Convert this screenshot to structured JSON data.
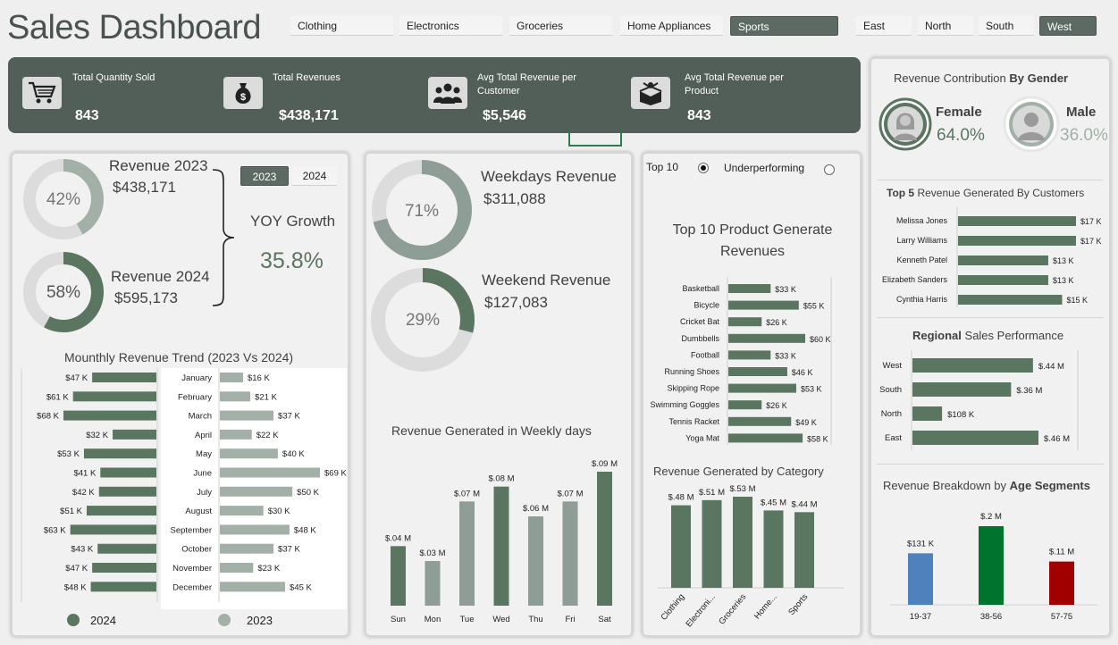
{
  "title": "Sales Dashboard",
  "category_slicer": [
    {
      "label": "Clothing",
      "selected": false
    },
    {
      "label": "Electronics",
      "selected": false
    },
    {
      "label": "Groceries",
      "selected": false
    },
    {
      "label": "Home Appliances",
      "selected": false
    },
    {
      "label": "Sports",
      "selected": true
    }
  ],
  "region_slicer": [
    {
      "label": "East",
      "selected": false
    },
    {
      "label": "North",
      "selected": false
    },
    {
      "label": "South",
      "selected": false
    },
    {
      "label": "West",
      "selected": true
    }
  ],
  "kpis": [
    {
      "label": "Total Quantity Sold",
      "value": "843",
      "icon": "cart-icon"
    },
    {
      "label": "Total Revenues",
      "value": "$438,171",
      "icon": "money-bag-icon"
    },
    {
      "label": "Avg Total Revenue per Customer",
      "value": "$5,546",
      "icon": "people-icon"
    },
    {
      "label": "Avg Total Revenue per Product",
      "value": "843",
      "icon": "product-box-icon"
    }
  ],
  "yoy": {
    "rev2023_label": "Revenue 2023",
    "rev2023_value": "$438,171",
    "rev2023_pct": "42%",
    "rev2023_frac": 0.42,
    "rev2024_label": "Revenue 2024",
    "rev2024_value": "$595,173",
    "rev2024_pct": "58%",
    "rev2024_frac": 0.58,
    "growth_label": "YOY Growth",
    "growth_value": "35.8%",
    "year_buttons": [
      {
        "label": "2023",
        "selected": true
      },
      {
        "label": "2024",
        "selected": false
      }
    ]
  },
  "monthly": {
    "title": "Mounthly Revenue Trend (2023 Vs 2024)",
    "months": [
      "January",
      "February",
      "March",
      "April",
      "May",
      "June",
      "July",
      "August",
      "September",
      "October",
      "November",
      "December"
    ],
    "values_2024": [
      47,
      61,
      68,
      32,
      53,
      41,
      42,
      51,
      63,
      43,
      47,
      48
    ],
    "labels_2024": [
      "$47 K",
      "$61 K",
      "$68 K",
      "$32 K",
      "$53 K",
      "$41 K",
      "$42 K",
      "$51 K",
      "$63 K",
      "$43 K",
      "$47 K",
      "$48 K"
    ],
    "values_2023": [
      16,
      21,
      37,
      22,
      40,
      69,
      50,
      30,
      48,
      37,
      23,
      45
    ],
    "labels_2023": [
      "$16 K",
      "$21 K",
      "$37 K",
      "$22 K",
      "$40 K",
      "$69 K",
      "$50 K",
      "$30 K",
      "$48 K",
      "$37 K",
      "$23 K",
      "$45 K"
    ],
    "legend_2024": "2024",
    "legend_2023": "2023"
  },
  "weekdays": {
    "weekday_label": "Weekdays Revenue",
    "weekday_value": "$311,088",
    "weekday_pct": "71%",
    "weekday_frac": 0.71,
    "weekend_label": "Weekend Revenue",
    "weekend_value": "$127,083",
    "weekend_pct": "29%",
    "weekend_frac": 0.29
  },
  "weekly_chart": {
    "title": "Revenue Generated in Weekly days",
    "days": [
      "Sun",
      "Mon",
      "Tue",
      "Wed",
      "Thu",
      "Fri",
      "Sat"
    ],
    "values": [
      0.04,
      0.03,
      0.07,
      0.08,
      0.06,
      0.07,
      0.09
    ],
    "labels": [
      "$.04 M",
      "$.03 M",
      "$.07 M",
      "$.08 M",
      "$.06 M",
      "$.07 M",
      "$.09 M"
    ]
  },
  "top10": {
    "toggle_top": "Top 10",
    "toggle_under": "Underperforming",
    "title": "Top 10 Product Generate Revenues",
    "products": [
      "Basketball",
      "Bicycle",
      "Cricket Bat",
      "Dumbbells",
      "Football",
      "Running Shoes",
      "Skipping Rope",
      "Swimming Goggles",
      "Tennis Racket",
      "Yoga Mat"
    ],
    "values": [
      33,
      55,
      26,
      60,
      33,
      46,
      53,
      26,
      49,
      58
    ],
    "labels": [
      "$33 K",
      "$55 K",
      "$26 K",
      "$60 K",
      "$33 K",
      "$46 K",
      "$53 K",
      "$26 K",
      "$49 K",
      "$58 K"
    ]
  },
  "category_chart": {
    "title": "Revenue Generated by Category",
    "categories": [
      "Clothing",
      "Electroni...",
      "Groceries",
      "Home...",
      "Sports"
    ],
    "values": [
      0.48,
      0.51,
      0.53,
      0.45,
      0.44
    ],
    "labels": [
      "$.48 M",
      "$.51 M",
      "$.53 M",
      "$.45 M",
      "$.44 M"
    ]
  },
  "gender": {
    "title_plain": "Revenue Contribution ",
    "title_bold": "By Gender",
    "female_label": "Female",
    "female_pct": "64.0%",
    "male_label": "Male",
    "male_pct": "36.0%"
  },
  "top5": {
    "title_bold": "Top 5",
    "title_plain": " Revenue Generated By Customers",
    "customers": [
      "Melissa Jones",
      "Larry Williams",
      "Kenneth Patel",
      "Elizabeth Sanders",
      "Cynthia Harris"
    ],
    "values": [
      17,
      17,
      13,
      13,
      15
    ],
    "labels": [
      "$17 K",
      "$17 K",
      "$13 K",
      "$13 K",
      "$15 K"
    ]
  },
  "regional": {
    "title_bold": "Regional",
    "title_plain": " Sales Performance",
    "regions": [
      "West",
      "South",
      "North",
      "East"
    ],
    "values": [
      0.44,
      0.36,
      0.108,
      0.46
    ],
    "labels": [
      "$.44 M",
      "$.36 M",
      "$108 K",
      "$.46 M"
    ]
  },
  "age": {
    "title_plain": "Revenue Breakdown by ",
    "title_bold": "Age Segments",
    "segments": [
      "19-37",
      "38-56",
      "57-75"
    ],
    "values": [
      0.131,
      0.2,
      0.11
    ],
    "labels": [
      "$131 K",
      "$.2 M",
      "$.11 M"
    ],
    "colors": [
      "#4f81bd",
      "#00732f",
      "#a00000"
    ]
  },
  "colors": {
    "accent": "#5a7560",
    "accent_light": "#a3b0a8",
    "ring_bg": "#dcdcdc",
    "band": "#525e58"
  },
  "chart_data": [
    {
      "type": "bar",
      "title": "Mounthly Revenue Trend (2023 Vs 2024)",
      "categories": [
        "January",
        "February",
        "March",
        "April",
        "May",
        "June",
        "July",
        "August",
        "September",
        "October",
        "November",
        "December"
      ],
      "series": [
        {
          "name": "2024",
          "values": [
            47,
            61,
            68,
            32,
            53,
            41,
            42,
            51,
            63,
            43,
            47,
            48
          ]
        },
        {
          "name": "2023",
          "values": [
            16,
            21,
            37,
            22,
            40,
            69,
            50,
            30,
            48,
            37,
            23,
            45
          ]
        }
      ]
    },
    {
      "type": "bar",
      "title": "Revenue Generated in Weekly days",
      "categories": [
        "Sun",
        "Mon",
        "Tue",
        "Wed",
        "Thu",
        "Fri",
        "Sat"
      ],
      "values": [
        0.04,
        0.03,
        0.07,
        0.08,
        0.06,
        0.07,
        0.09
      ]
    },
    {
      "type": "bar",
      "title": "Top 10 Product Generate Revenues",
      "categories": [
        "Basketball",
        "Bicycle",
        "Cricket Bat",
        "Dumbbells",
        "Football",
        "Running Shoes",
        "Skipping Rope",
        "Swimming Goggles",
        "Tennis Racket",
        "Yoga Mat"
      ],
      "values": [
        33,
        55,
        26,
        60,
        33,
        46,
        53,
        26,
        49,
        58
      ]
    },
    {
      "type": "bar",
      "title": "Revenue Generated by Category",
      "categories": [
        "Clothing",
        "Electroni...",
        "Groceries",
        "Home...",
        "Sports"
      ],
      "values": [
        0.48,
        0.51,
        0.53,
        0.45,
        0.44
      ]
    },
    {
      "type": "bar",
      "title": "Top 5 Revenue Generated By Customers",
      "categories": [
        "Melissa Jones",
        "Larry Williams",
        "Kenneth Patel",
        "Elizabeth Sanders",
        "Cynthia Harris"
      ],
      "values": [
        17,
        17,
        13,
        13,
        15
      ]
    },
    {
      "type": "bar",
      "title": "Regional Sales Performance",
      "categories": [
        "West",
        "South",
        "North",
        "East"
      ],
      "values": [
        0.44,
        0.36,
        0.108,
        0.46
      ]
    },
    {
      "type": "bar",
      "title": "Revenue Breakdown by Age Segments",
      "categories": [
        "19-37",
        "38-56",
        "57-75"
      ],
      "values": [
        0.131,
        0.2,
        0.11
      ]
    }
  ]
}
